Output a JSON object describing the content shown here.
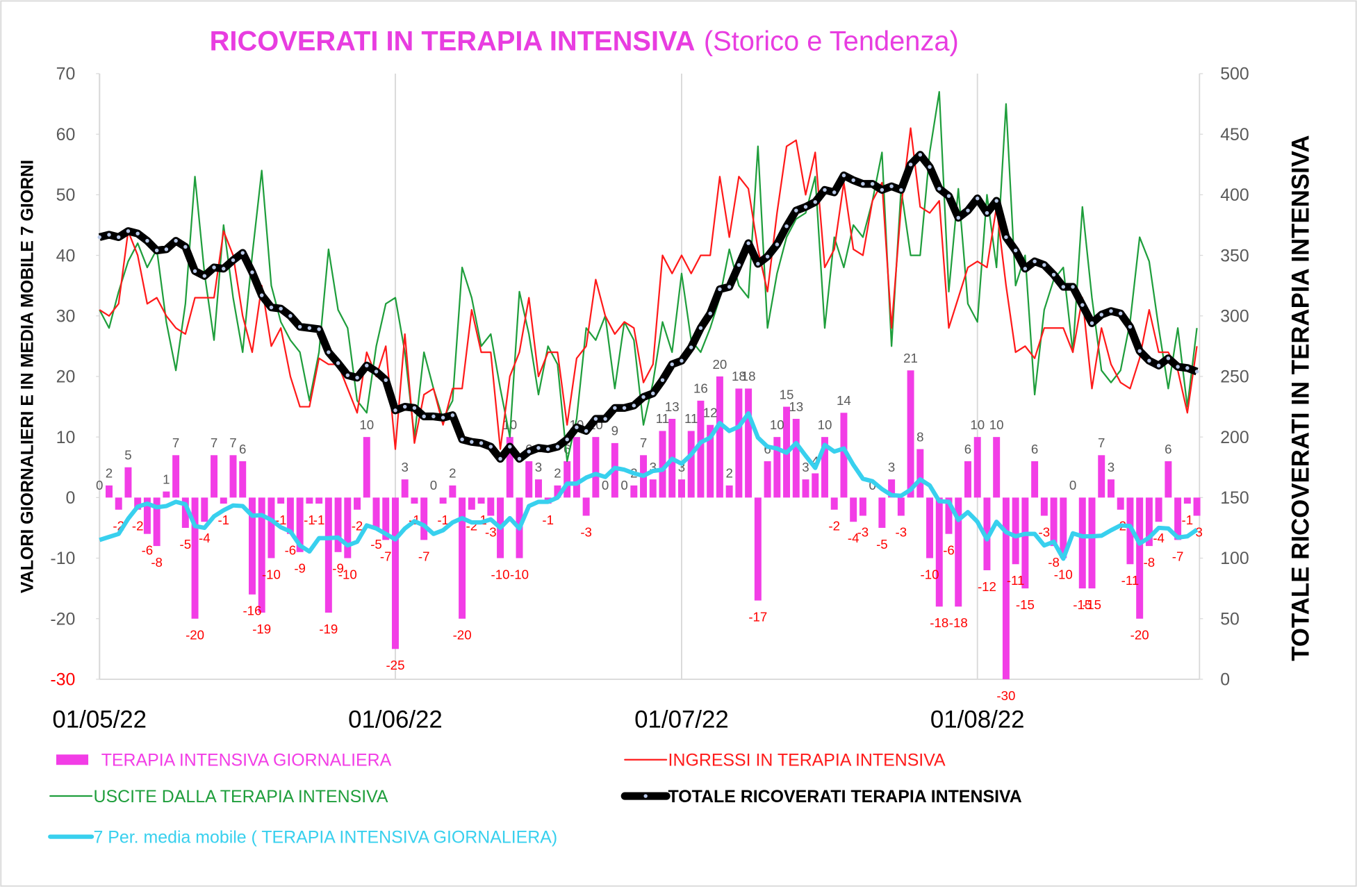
{
  "chart_data": {
    "type": "combo",
    "title": "RICOVERATI IN TERAPIA INTENSIVA",
    "subtitle": "(Storico e Tendenza)",
    "y_label": "VALORI GIORNALIERI E IN MEDIA MOBILE 7 GIORNI",
    "y2_label": "TOTALE RICOVERATI IN TERAPIA INTENSIVA",
    "categories": [
      "01/05/22",
      null,
      null,
      null,
      null,
      null,
      null,
      null,
      null,
      null,
      null,
      null,
      null,
      null,
      null,
      null,
      null,
      null,
      null,
      null,
      null,
      null,
      null,
      null,
      null,
      null,
      null,
      null,
      null,
      null,
      null,
      "01/06/22",
      null,
      null,
      null,
      null,
      null,
      null,
      null,
      null,
      null,
      null,
      null,
      null,
      null,
      null,
      null,
      null,
      null,
      null,
      null,
      null,
      null,
      null,
      null,
      null,
      null,
      null,
      null,
      null,
      null,
      "01/07/22",
      null,
      null,
      null,
      null,
      null,
      null,
      null,
      null,
      null,
      null,
      null,
      null,
      null,
      null,
      null,
      null,
      null,
      null,
      null,
      null,
      null,
      null,
      null,
      null,
      null,
      null,
      null,
      null,
      null,
      null,
      "01/08/22",
      null,
      null,
      null,
      null,
      null,
      null,
      null,
      null,
      null,
      null,
      null,
      null,
      null,
      null,
      null,
      null,
      null,
      null,
      null,
      null,
      null,
      null,
      null
    ],
    "ylim": [
      -30,
      70
    ],
    "yticks": [
      -30,
      -20,
      -10,
      0,
      10,
      20,
      30,
      40,
      50,
      60,
      70
    ],
    "y2lim": [
      0,
      500
    ],
    "y2ticks": [
      0,
      50,
      100,
      150,
      200,
      250,
      300,
      350,
      400,
      450,
      500
    ],
    "grid": "x",
    "legend": "bottom",
    "series": [
      {
        "name": "TERAPIA INTENSIVA GIORNALIERA",
        "type": "bar",
        "color": "#f23de6",
        "data_labels": true,
        "values": [
          0,
          2,
          -2,
          5,
          -2,
          -6,
          -8,
          1,
          7,
          -5,
          -20,
          -4,
          7,
          -1,
          7,
          6,
          -16,
          -19,
          -10,
          -1,
          -6,
          -9,
          -1,
          -1,
          -19,
          -9,
          -10,
          -2,
          10,
          -5,
          -7,
          -25,
          3,
          -1,
          -7,
          0,
          -1,
          2,
          -20,
          -2,
          -1,
          -3,
          -10,
          10,
          -10,
          6,
          3,
          -1,
          2,
          6,
          10,
          -3,
          10,
          0,
          9,
          0,
          2,
          7,
          3,
          11,
          13,
          3,
          11,
          16,
          12,
          20,
          2,
          18,
          18,
          -17,
          6,
          10,
          15,
          13,
          3,
          4,
          10,
          -2,
          14,
          -4,
          -3,
          0,
          -5,
          3,
          -3,
          21,
          8,
          -10,
          -18,
          -6,
          -18,
          6,
          10,
          -12,
          10,
          -30,
          -11,
          -15,
          6,
          -3,
          -8,
          -10,
          0,
          -15,
          -15,
          7,
          3,
          -2,
          -11,
          -20,
          -8,
          -4,
          6,
          -7,
          -1,
          -3
        ]
      },
      {
        "name": "INGRESSI IN TERAPIA INTENSIVA",
        "type": "line",
        "color": "#ff1a1a",
        "values": [
          31,
          30,
          32,
          44,
          40,
          32,
          33,
          30,
          28,
          27,
          33,
          33,
          33,
          44,
          40,
          30,
          24,
          35,
          25,
          28,
          20,
          15,
          15,
          23,
          22,
          22,
          18,
          14,
          24,
          20,
          25,
          8,
          27,
          9,
          17,
          18,
          12,
          18,
          18,
          31,
          24,
          24,
          8,
          20,
          24,
          33,
          20,
          24,
          24,
          12,
          23,
          25,
          36,
          30,
          27,
          29,
          28,
          19,
          22,
          40,
          37,
          40,
          37,
          40,
          40,
          53,
          43,
          53,
          51,
          41,
          34,
          47,
          58,
          59,
          50,
          57,
          38,
          41,
          52,
          41,
          40,
          49,
          52,
          28,
          48,
          61,
          48,
          47,
          49,
          28,
          33,
          38,
          39,
          38,
          48,
          35,
          24,
          25,
          23,
          28,
          28,
          28,
          24,
          33,
          18,
          28,
          22,
          19,
          18,
          23,
          31,
          24,
          24,
          21,
          14,
          25
        ]
      },
      {
        "name": "USCITE DALLA TERAPIA INTENSIVA",
        "type": "line",
        "color": "#1f9e3c",
        "values": [
          31,
          28,
          34,
          39,
          42,
          38,
          41,
          29,
          21,
          32,
          53,
          37,
          26,
          45,
          33,
          24,
          40,
          54,
          35,
          29,
          26,
          24,
          16,
          24,
          41,
          31,
          28,
          16,
          14,
          25,
          32,
          33,
          24,
          10,
          24,
          18,
          13,
          16,
          38,
          33,
          25,
          27,
          18,
          10,
          34,
          27,
          17,
          25,
          22,
          6,
          13,
          28,
          26,
          30,
          18,
          29,
          26,
          12,
          19,
          29,
          24,
          37,
          26,
          24,
          28,
          33,
          41,
          35,
          33,
          58,
          28,
          37,
          43,
          46,
          47,
          53,
          28,
          43,
          38,
          45,
          43,
          49,
          57,
          25,
          51,
          40,
          40,
          57,
          67,
          34,
          51,
          32,
          29,
          50,
          38,
          65,
          35,
          40,
          17,
          31,
          36,
          38,
          24,
          48,
          33,
          21,
          19,
          21,
          29,
          43,
          39,
          28,
          18,
          28,
          15,
          28
        ]
      },
      {
        "name": "TOTALE RICOVERATI TERAPIA INTENSIVA",
        "type": "line",
        "axis": "y2",
        "color": "#000000",
        "markers": true,
        "values": [
          365,
          367,
          365,
          370,
          368,
          362,
          354,
          355,
          362,
          357,
          337,
          333,
          340,
          339,
          346,
          352,
          336,
          317,
          307,
          306,
          300,
          291,
          290,
          289,
          270,
          261,
          251,
          249,
          259,
          254,
          247,
          222,
          225,
          224,
          217,
          217,
          216,
          218,
          198,
          196,
          195,
          192,
          182,
          192,
          182,
          188,
          191,
          190,
          192,
          198,
          208,
          205,
          215,
          215,
          224,
          224,
          226,
          233,
          236,
          247,
          260,
          263,
          274,
          290,
          302,
          322,
          324,
          342,
          360,
          343,
          349,
          359,
          374,
          387,
          390,
          394,
          404,
          402,
          416,
          412,
          409,
          409,
          404,
          407,
          404,
          425,
          433,
          423,
          405,
          399,
          381,
          387,
          397,
          385,
          395,
          365,
          354,
          339,
          345,
          342,
          334,
          324,
          324,
          309,
          294,
          301,
          304,
          302,
          291,
          271,
          263,
          259,
          265,
          258,
          257,
          254
        ]
      },
      {
        "name": "7 Per. media mobile ( TERAPIA INTENSIVA GIORNALIERA)",
        "type": "line",
        "color": "#38d0ee",
        "values": [
          -7,
          -6.5,
          -6,
          -3.5,
          -1.5,
          -1,
          -1.6,
          -1.4,
          -0.7,
          -1.1,
          -4.7,
          -5,
          -3.1,
          -2.1,
          -1.3,
          -1.4,
          -3,
          -2.9,
          -3.7,
          -4.9,
          -5.6,
          -7.9,
          -8.9,
          -6.7,
          -6.7,
          -6.6,
          -7.9,
          -7.3,
          -4.6,
          -5.1,
          -6,
          -6.9,
          -5.1,
          -3.9,
          -4.6,
          -6,
          -5.4,
          -4.1,
          -3.4,
          -4.1,
          -4.1,
          -3.6,
          -5,
          -3.4,
          -5.1,
          -1.4,
          -0.7,
          -0.7,
          0,
          2.3,
          2.3,
          3.3,
          3.9,
          3.4,
          4.9,
          4.6,
          4,
          3.6,
          4.4,
          4.6,
          6.4,
          5.6,
          7.1,
          9.1,
          9.9,
          12.3,
          11,
          11.7,
          13.9,
          9.9,
          8.4,
          8.1,
          7.4,
          9,
          6.9,
          4.9,
          8.7,
          7.6,
          8.1,
          5.4,
          3.1,
          2.7,
          1.4,
          0.4,
          0.3,
          1.3,
          3,
          2,
          -0.6,
          -0.7,
          -3.7,
          -2.4,
          -4,
          -6.9,
          -4,
          -5.7,
          -6.4,
          -6,
          -6,
          -7.9,
          -7.3,
          -10.1,
          -5.9,
          -6.4,
          -6.4,
          -6.3,
          -5.4,
          -4.6,
          -4.7,
          -7.6,
          -6.6,
          -5,
          -5.1,
          -6.6,
          -6.4,
          -5.3
        ]
      }
    ]
  }
}
